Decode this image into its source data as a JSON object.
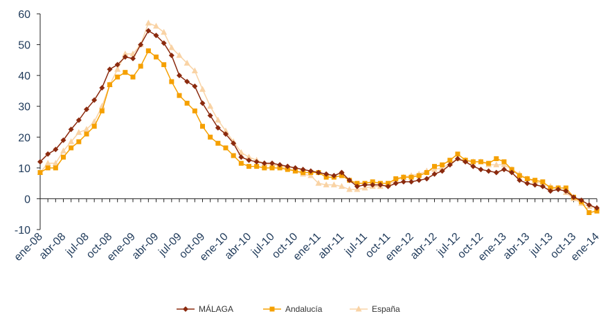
{
  "chart_data": {
    "type": "line",
    "categories": [
      "ene-08",
      null,
      null,
      "abr-08",
      null,
      null,
      "jul-08",
      null,
      null,
      "oct-08",
      null,
      null,
      "ene-09",
      null,
      null,
      "abr-09",
      null,
      null,
      "jul-09",
      null,
      null,
      "oct-09",
      null,
      null,
      "ene-10",
      null,
      null,
      "abr-10",
      null,
      null,
      "jul-10",
      null,
      null,
      "oct-10",
      null,
      null,
      "ene-11",
      null,
      null,
      "abr-11",
      null,
      null,
      "jul-11",
      null,
      null,
      "oct-11",
      null,
      null,
      "ene-12",
      null,
      null,
      "abr-12",
      null,
      null,
      "jul-12",
      null,
      null,
      "oct-12",
      null,
      null,
      "ene-13",
      null,
      null,
      "abr-13",
      null,
      null,
      "jul-13",
      null,
      null,
      "oct-13",
      null,
      null,
      "ene-14"
    ],
    "series": [
      {
        "name": "MÁLAGA",
        "color": "#8b2a0e",
        "marker": "diamond",
        "values": [
          12,
          14.5,
          16,
          19,
          22.5,
          25.5,
          29,
          32,
          36,
          42,
          43.5,
          46,
          45.5,
          50,
          54.5,
          53,
          50.5,
          46.5,
          40,
          38,
          36.5,
          31,
          27,
          23,
          21,
          18,
          13.5,
          12.5,
          12,
          11.5,
          11.5,
          11,
          10.5,
          10,
          9.5,
          9,
          8.5,
          8,
          7.5,
          8.5,
          6,
          4,
          4.5,
          4.5,
          4.5,
          4,
          5,
          5.5,
          5.5,
          6,
          6.5,
          8,
          9,
          11,
          13,
          12,
          10.5,
          9.5,
          9,
          8.5,
          9.5,
          8.5,
          6,
          5,
          4.5,
          4,
          2.5,
          3,
          2.5,
          0.5,
          -0.5,
          -2,
          -3
        ]
      },
      {
        "name": "Andalucía",
        "color": "#f5a000",
        "marker": "square",
        "values": [
          8.5,
          10,
          10,
          13.5,
          16.5,
          18.5,
          21,
          23.5,
          28.5,
          37,
          39.5,
          41,
          39.5,
          43,
          48,
          46,
          43.5,
          38,
          33.5,
          31,
          28.5,
          23.5,
          20,
          18,
          16.5,
          14,
          11.5,
          10.5,
          10.5,
          10,
          10,
          10,
          9.5,
          9,
          8.5,
          8.5,
          8.5,
          7,
          7,
          7.5,
          6,
          5,
          5,
          5.5,
          5,
          5,
          6.5,
          7,
          7,
          7.5,
          8.5,
          10.5,
          11,
          12.5,
          14.5,
          12.5,
          12,
          12,
          11.5,
          13,
          12,
          9.5,
          7.5,
          6.5,
          6,
          5.5,
          3.5,
          3.5,
          3.5,
          0.5,
          -1,
          -4.5,
          -4
        ]
      },
      {
        "name": "España",
        "color": "#f9d3a5",
        "marker": "triangle",
        "values": [
          8.5,
          11.5,
          11.5,
          15.5,
          18.5,
          21.5,
          22.5,
          25,
          30,
          37,
          42,
          47,
          47,
          50,
          57,
          56,
          54,
          49,
          46.5,
          44,
          41.5,
          35.5,
          30,
          25.5,
          22,
          18.5,
          15,
          13.5,
          12.5,
          11.5,
          11,
          10.5,
          10,
          9,
          8,
          7.5,
          5,
          4.5,
          4.5,
          4,
          3,
          3,
          3.5,
          4,
          4,
          4.5,
          6,
          7,
          7.5,
          8,
          9,
          9.5,
          10,
          11.5,
          13,
          12.5,
          12,
          12,
          11,
          11,
          11,
          9.5,
          8,
          6.5,
          5.5,
          5,
          4,
          3.5,
          2,
          0,
          -1.5,
          -2.5,
          -3
        ]
      }
    ],
    "ylim": [
      -10,
      60
    ],
    "yticks": [
      -10,
      0,
      10,
      20,
      30,
      40,
      50,
      60
    ],
    "legend": "bottom"
  }
}
